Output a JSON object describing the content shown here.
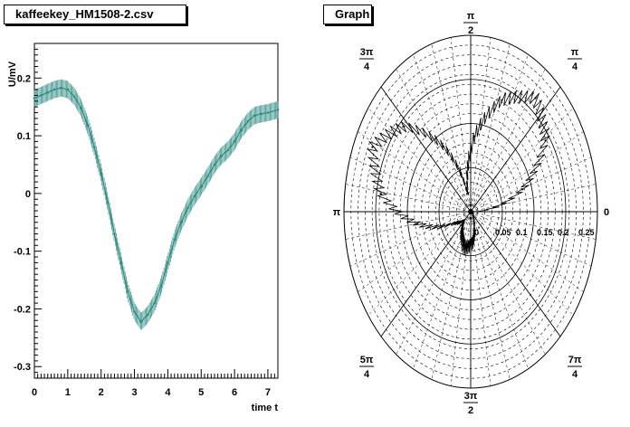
{
  "left_panel": {
    "title": "kaffeekey_HM1508-2.csv"
  },
  "right_panel": {
    "title": "Graph"
  },
  "chart_data": [
    {
      "type": "line",
      "xlabel": "time t",
      "ylabel": "U/mV",
      "xlim": [
        0,
        7.3
      ],
      "ylim": [
        -0.32,
        0.26
      ],
      "x_ticks": [
        0,
        1,
        2,
        3,
        4,
        5,
        6,
        7
      ],
      "y_ticks": [
        -0.3,
        -0.2,
        -0.1,
        0,
        0.1,
        0.2
      ],
      "line_color": "#2e8b80",
      "series": [
        {
          "x": [
            0,
            0.2,
            0.4,
            0.6,
            0.8,
            1.0,
            1.2,
            1.4,
            1.6,
            1.8,
            2.0,
            2.2,
            2.4,
            2.6,
            2.8,
            3.0,
            3.2,
            3.4,
            3.6,
            3.8,
            4.0,
            4.2,
            4.4,
            4.6,
            4.8,
            5.0,
            5.2,
            5.4,
            5.6,
            5.8,
            6.0,
            6.2,
            6.4,
            6.6,
            6.8,
            7.0,
            7.3
          ],
          "y": [
            0.165,
            0.17,
            0.175,
            0.18,
            0.183,
            0.18,
            0.168,
            0.148,
            0.118,
            0.08,
            0.035,
            -0.015,
            -0.07,
            -0.12,
            -0.17,
            -0.205,
            -0.222,
            -0.21,
            -0.19,
            -0.16,
            -0.12,
            -0.08,
            -0.05,
            -0.025,
            -0.005,
            0.012,
            0.03,
            0.05,
            0.065,
            0.075,
            0.09,
            0.11,
            0.125,
            0.135,
            0.138,
            0.14,
            0.145
          ],
          "error_spread": 0.015
        }
      ]
    },
    {
      "type": "polar",
      "angle_labels": [
        {
          "num": "",
          "sym": "0",
          "den": ""
        },
        {
          "num": "",
          "sym": "π",
          "den": "4"
        },
        {
          "num": "",
          "sym": "π",
          "den": "2"
        },
        {
          "num": "3",
          "sym": "π",
          "den": "4"
        },
        {
          "num": "",
          "sym": "π",
          "den": ""
        },
        {
          "num": "5",
          "sym": "π",
          "den": "4"
        },
        {
          "num": "3",
          "sym": "π",
          "den": "2"
        },
        {
          "num": "7",
          "sym": "π",
          "den": "4"
        }
      ],
      "radial_ticks": [
        "0",
        "0.05",
        "0.1",
        "0.15",
        "0.2",
        "0.25"
      ],
      "rmax": 0.28,
      "series": [
        {
          "theta": [
            0,
            0.3,
            0.6,
            0.9,
            1.2,
            1.5,
            1.8,
            2.1,
            2.4,
            2.7,
            3.0,
            3.3,
            3.6,
            3.9,
            4.2,
            4.5,
            4.8,
            5.1,
            5.4,
            5.7,
            6.0,
            6.28
          ],
          "r": [
            0.005,
            0.12,
            0.2,
            0.23,
            0.19,
            0.12,
            0.03,
            0.12,
            0.2,
            0.24,
            0.2,
            0.12,
            0.04,
            0.02,
            0.04,
            0.06,
            0.05,
            0.02,
            0.008,
            0.006,
            0.005,
            0.005
          ],
          "jitter": 0.012
        }
      ]
    }
  ]
}
